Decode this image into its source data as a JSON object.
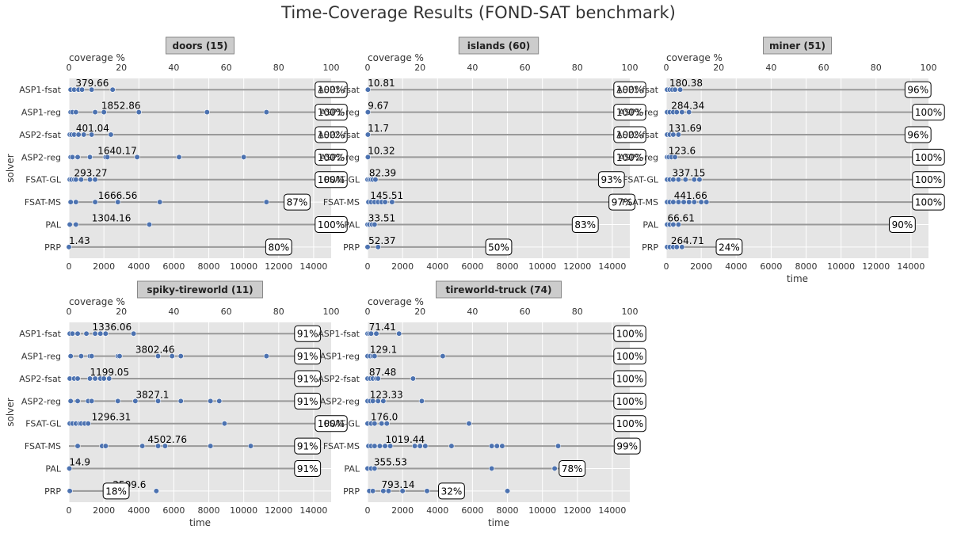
{
  "title": "Time-Coverage Results (FOND-SAT benchmark)",
  "colors": {
    "panel_bg": "#e5e5e5",
    "grid": "#ffffff",
    "line": "#999999",
    "point": "#4c72b0",
    "title_box": "#cccccc",
    "tick_text": "#333333"
  },
  "chart_data": [
    {
      "type": "scatter",
      "title": "doors (15)",
      "solvers": [
        "ASP1-fsat",
        "ASP1-reg",
        "ASP2-fsat",
        "ASP2-reg",
        "FSAT-GL",
        "FSAT-MS",
        "PAL",
        "PRP"
      ],
      "ylabel": "solver",
      "xlabel": "",
      "top_label": "coverage %",
      "xlim": [
        0,
        15000
      ],
      "xticks": [
        0,
        2000,
        4000,
        6000,
        8000,
        10000,
        12000,
        14000
      ],
      "top_xlim": [
        0,
        100
      ],
      "top_xticks": [
        0,
        20,
        40,
        60,
        80,
        100
      ],
      "series": [
        {
          "name": "ASP1-fsat",
          "points": [
            100,
            300,
            550,
            750,
            1300,
            2500
          ],
          "mean_label": "379.66",
          "coverage": 100,
          "coverage_label": "100%"
        },
        {
          "name": "ASP1-reg",
          "points": [
            100,
            200,
            400,
            1500,
            2000,
            4000,
            7900,
            11300
          ],
          "mean_label": "1852.86",
          "coverage": 100,
          "coverage_label": "100%"
        },
        {
          "name": "ASP2-fsat",
          "points": [
            50,
            150,
            300,
            550,
            850,
            1300,
            2400
          ],
          "mean_label": "401.04",
          "coverage": 100,
          "coverage_label": "100%"
        },
        {
          "name": "ASP2-reg",
          "points": [
            100,
            200,
            500,
            1200,
            2100,
            2200,
            3900,
            6300,
            10000
          ],
          "mean_label": "1640.17",
          "coverage": 100,
          "coverage_label": "100%"
        },
        {
          "name": "FSAT-GL",
          "points": [
            50,
            150,
            300,
            400,
            700,
            1200,
            1500
          ],
          "mean_label": "293.27",
          "coverage": 100,
          "coverage_label": "100%"
        },
        {
          "name": "FSAT-MS",
          "points": [
            100,
            400,
            1500,
            2800,
            5200,
            11300
          ],
          "mean_label": "1666.56",
          "coverage": 87,
          "coverage_label": "87%"
        },
        {
          "name": "PAL",
          "points": [
            50,
            400,
            4600,
            14500
          ],
          "mean_label": "1304.16",
          "coverage": 100,
          "coverage_label": "100%"
        },
        {
          "name": "PRP",
          "points": [
            0
          ],
          "mean_label": "1.43",
          "coverage": 80,
          "coverage_label": "80%"
        }
      ]
    },
    {
      "type": "scatter",
      "title": "islands (60)",
      "solvers": [
        "ASP1-fsat",
        "ASP1-reg",
        "ASP2-fsat",
        "ASP2-reg",
        "FSAT-GL",
        "FSAT-MS",
        "PAL",
        "PRP"
      ],
      "ylabel": "",
      "xlabel": "",
      "top_label": "coverage %",
      "xlim": [
        0,
        15000
      ],
      "xticks": [
        0,
        2000,
        4000,
        6000,
        8000,
        10000,
        12000,
        14000
      ],
      "top_xlim": [
        0,
        100
      ],
      "top_xticks": [
        0,
        20,
        40,
        60,
        80,
        100
      ],
      "series": [
        {
          "name": "ASP1-fsat",
          "points": [
            0,
            20
          ],
          "mean_label": "10.81",
          "coverage": 100,
          "coverage_label": "100%"
        },
        {
          "name": "ASP1-reg",
          "points": [
            0,
            20
          ],
          "mean_label": "9.67",
          "coverage": 100,
          "coverage_label": "100%"
        },
        {
          "name": "ASP2-fsat",
          "points": [
            0,
            20
          ],
          "mean_label": "11.7",
          "coverage": 100,
          "coverage_label": "100%"
        },
        {
          "name": "ASP2-reg",
          "points": [
            0,
            20
          ],
          "mean_label": "10.32",
          "coverage": 100,
          "coverage_label": "100%"
        },
        {
          "name": "FSAT-GL",
          "points": [
            0,
            100,
            200,
            300,
            450
          ],
          "mean_label": "82.39",
          "coverage": 93,
          "coverage_label": "93%"
        },
        {
          "name": "FSAT-MS",
          "points": [
            50,
            200,
            400,
            600,
            800,
            1000,
            1400
          ],
          "mean_label": "145.51",
          "coverage": 97,
          "coverage_label": "97%"
        },
        {
          "name": "PAL",
          "points": [
            0,
            100,
            250,
            400
          ],
          "mean_label": "33.51",
          "coverage": 83,
          "coverage_label": "83%"
        },
        {
          "name": "PRP",
          "points": [
            0,
            600
          ],
          "mean_label": "52.37",
          "coverage": 50,
          "coverage_label": "50%"
        }
      ]
    },
    {
      "type": "scatter",
      "title": "miner (51)",
      "solvers": [
        "ASP1-fsat",
        "ASP1-reg",
        "ASP2-fsat",
        "ASP2-reg",
        "FSAT-GL",
        "FSAT-MS",
        "PAL",
        "PRP"
      ],
      "ylabel": "",
      "xlabel": "time",
      "top_label": "coverage %",
      "xlim": [
        0,
        15000
      ],
      "xticks": [
        0,
        2000,
        4000,
        6000,
        8000,
        10000,
        12000,
        14000
      ],
      "top_xlim": [
        0,
        100
      ],
      "top_xticks": [
        0,
        20,
        40,
        60,
        80,
        100
      ],
      "series": [
        {
          "name": "ASP1-fsat",
          "points": [
            50,
            200,
            350,
            500,
            800
          ],
          "mean_label": "180.38",
          "coverage": 96,
          "coverage_label": "96%"
        },
        {
          "name": "ASP1-reg",
          "points": [
            50,
            200,
            400,
            600,
            900,
            1300
          ],
          "mean_label": "284.34",
          "coverage": 100,
          "coverage_label": "100%"
        },
        {
          "name": "ASP2-fsat",
          "points": [
            50,
            200,
            400,
            700
          ],
          "mean_label": "131.69",
          "coverage": 96,
          "coverage_label": "96%"
        },
        {
          "name": "ASP2-reg",
          "points": [
            50,
            150,
            300,
            500
          ],
          "mean_label": "123.6",
          "coverage": 100,
          "coverage_label": "100%"
        },
        {
          "name": "FSAT-GL",
          "points": [
            50,
            200,
            400,
            700,
            1100,
            1600,
            1900
          ],
          "mean_label": "337.15",
          "coverage": 100,
          "coverage_label": "100%"
        },
        {
          "name": "FSAT-MS",
          "points": [
            50,
            200,
            400,
            700,
            1000,
            1300,
            1600,
            2000,
            2300
          ],
          "mean_label": "441.66",
          "coverage": 100,
          "coverage_label": "100%"
        },
        {
          "name": "PAL",
          "points": [
            50,
            200,
            400,
            700
          ],
          "mean_label": "66.61",
          "coverage": 90,
          "coverage_label": "90%"
        },
        {
          "name": "PRP",
          "points": [
            50,
            200,
            400,
            600,
            900
          ],
          "mean_label": "264.71",
          "coverage": 24,
          "coverage_label": "24%"
        }
      ]
    },
    {
      "type": "scatter",
      "title": "spiky-tireworld (11)",
      "solvers": [
        "ASP1-fsat",
        "ASP1-reg",
        "ASP2-fsat",
        "ASP2-reg",
        "FSAT-GL",
        "FSAT-MS",
        "PAL",
        "PRP"
      ],
      "ylabel": "solver",
      "xlabel": "time",
      "top_label": "coverage %",
      "xlim": [
        0,
        15000
      ],
      "xticks": [
        0,
        2000,
        4000,
        6000,
        8000,
        10000,
        12000,
        14000
      ],
      "top_xlim": [
        0,
        100
      ],
      "top_xticks": [
        0,
        20,
        40,
        60,
        80,
        100
      ],
      "series": [
        {
          "name": "ASP1-fsat",
          "points": [
            50,
            200,
            500,
            1000,
            1500,
            1800,
            2100,
            3700
          ],
          "mean_label": "1336.06",
          "coverage": 91,
          "coverage_label": "91%"
        },
        {
          "name": "ASP1-reg",
          "points": [
            100,
            700,
            1200,
            1300,
            2800,
            2900,
            5100,
            5900,
            6400,
            11300
          ],
          "mean_label": "3802.46",
          "coverage": 91,
          "coverage_label": "91%"
        },
        {
          "name": "ASP2-fsat",
          "points": [
            50,
            300,
            500,
            1200,
            1500,
            1800,
            2000,
            2300
          ],
          "mean_label": "1199.05",
          "coverage": 91,
          "coverage_label": "91%"
        },
        {
          "name": "ASP2-reg",
          "points": [
            100,
            500,
            1100,
            1300,
            2800,
            3800,
            5100,
            6400,
            8100,
            8600
          ],
          "mean_label": "3827.1",
          "coverage": 91,
          "coverage_label": "91%"
        },
        {
          "name": "FSAT-GL",
          "points": [
            50,
            200,
            400,
            600,
            700,
            900,
            1100,
            8900
          ],
          "mean_label": "1296.31",
          "coverage": 100,
          "coverage_label": "100%"
        },
        {
          "name": "FSAT-MS",
          "points": [
            500,
            1900,
            2100,
            4200,
            5100,
            5500,
            8100,
            10400
          ],
          "mean_label": "4502.76",
          "coverage": 91,
          "coverage_label": "91%"
        },
        {
          "name": "PAL",
          "points": [
            0,
            30
          ],
          "mean_label": "14.9",
          "coverage": 91,
          "coverage_label": "91%"
        },
        {
          "name": "PRP",
          "points": [
            50,
            5000
          ],
          "mean_label": "2509.6",
          "coverage": 18,
          "coverage_label": "18%"
        }
      ]
    },
    {
      "type": "scatter",
      "title": "tireworld-truck (74)",
      "solvers": [
        "ASP1-fsat",
        "ASP1-reg",
        "ASP2-fsat",
        "ASP2-reg",
        "FSAT-GL",
        "FSAT-MS",
        "PAL",
        "PRP"
      ],
      "ylabel": "",
      "xlabel": "time",
      "top_label": "coverage %",
      "xlim": [
        0,
        15000
      ],
      "xticks": [
        0,
        2000,
        4000,
        6000,
        8000,
        10000,
        12000,
        14000
      ],
      "top_xlim": [
        0,
        100
      ],
      "top_xticks": [
        0,
        20,
        40,
        60,
        80,
        100
      ],
      "series": [
        {
          "name": "ASP1-fsat",
          "points": [
            0,
            100,
            200,
            500,
            1800
          ],
          "mean_label": "71.41",
          "coverage": 100,
          "coverage_label": "100%"
        },
        {
          "name": "ASP1-reg",
          "points": [
            0,
            150,
            300,
            400,
            4300
          ],
          "mean_label": "129.1",
          "coverage": 100,
          "coverage_label": "100%"
        },
        {
          "name": "ASP2-fsat",
          "points": [
            0,
            150,
            300,
            500,
            600,
            2600
          ],
          "mean_label": "87.48",
          "coverage": 100,
          "coverage_label": "100%"
        },
        {
          "name": "ASP2-reg",
          "points": [
            0,
            150,
            300,
            600,
            900,
            3100
          ],
          "mean_label": "123.33",
          "coverage": 100,
          "coverage_label": "100%"
        },
        {
          "name": "FSAT-GL",
          "points": [
            0,
            200,
            400,
            800,
            1100,
            5800
          ],
          "mean_label": "176.0",
          "coverage": 100,
          "coverage_label": "100%"
        },
        {
          "name": "FSAT-MS",
          "points": [
            50,
            200,
            400,
            700,
            1000,
            1300,
            2700,
            3000,
            3300,
            4800,
            7100,
            7400,
            7700,
            10900
          ],
          "mean_label": "1019.44",
          "coverage": 99,
          "coverage_label": "99%"
        },
        {
          "name": "PAL",
          "points": [
            0,
            200,
            400,
            7100,
            10700
          ],
          "mean_label": "355.53",
          "coverage": 78,
          "coverage_label": "78%"
        },
        {
          "name": "PRP",
          "points": [
            100,
            300,
            900,
            1200,
            2000,
            3400,
            8000
          ],
          "mean_label": "793.14",
          "coverage": 32,
          "coverage_label": "32%"
        }
      ]
    }
  ]
}
